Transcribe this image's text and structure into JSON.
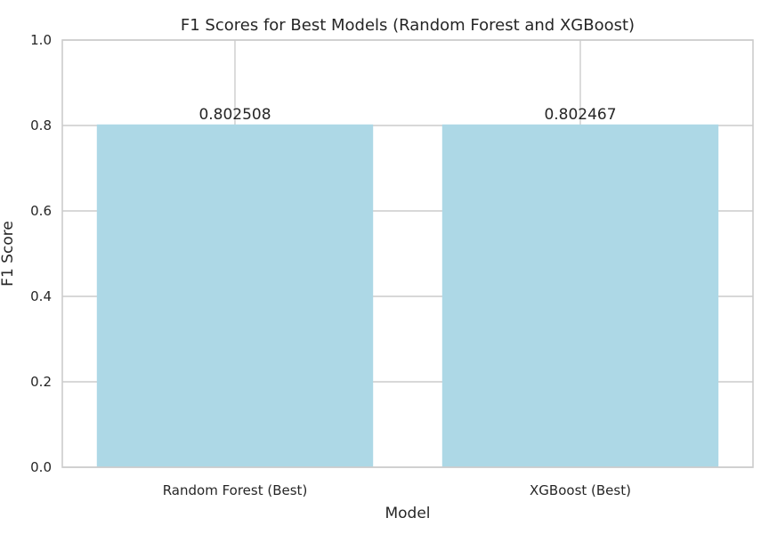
{
  "chart_data": {
    "type": "bar",
    "title": "F1 Scores for Best Models (Random Forest and XGBoost)",
    "xlabel": "Model",
    "ylabel": "F1 Score",
    "categories": [
      "Random Forest (Best)",
      "XGBoost (Best)"
    ],
    "values": [
      0.802508,
      0.802467
    ],
    "data_labels": [
      "0.802508",
      "0.802467"
    ],
    "ylim": [
      0,
      1.0
    ],
    "yticks": [
      0.0,
      0.2,
      0.4,
      0.6,
      0.8,
      1.0
    ],
    "ytick_labels": [
      "0.0",
      "0.2",
      "0.4",
      "0.6",
      "0.8",
      "1.0"
    ],
    "grid": true,
    "bar_color": "#add8e6",
    "grid_color": "#cccccc",
    "text_color": "#262626"
  }
}
